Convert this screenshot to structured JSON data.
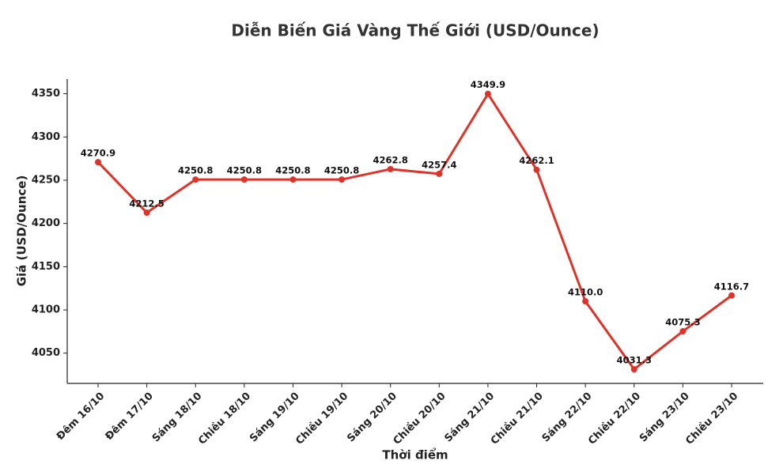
{
  "chart_data": {
    "type": "line",
    "title": "Diễn Biến Giá Vàng Thế Giới (USD/Ounce)",
    "x_label": "Thời điểm",
    "y_label": "Giá (USD/Ounce)",
    "categories": [
      "Đêm 16/10",
      "Đêm 17/10",
      "Sáng 18/10",
      "Chiều 18/10",
      "Sáng 19/10",
      "Chiều 19/10",
      "Sáng 20/10",
      "Chiều 20/10",
      "Sáng 21/10",
      "Chiều 21/10",
      "Sáng 22/10",
      "Chiều 22/10",
      "Sáng 23/10",
      "Chiều 23/10"
    ],
    "values": [
      4270.9,
      4212.5,
      4250.8,
      4250.8,
      4250.8,
      4250.8,
      4262.8,
      4257.4,
      4349.9,
      4262.1,
      4110.0,
      4031.3,
      4075.3,
      4116.7
    ],
    "value_labels": [
      "4270.9",
      "4212.5",
      "4250.8",
      "4250.8",
      "4250.8",
      "4250.8",
      "4262.8",
      "4257.4",
      "4349.9",
      "4262.1",
      "4110.0",
      "4031.3",
      "4075.3",
      "4116.7"
    ],
    "color": "#dd3328",
    "ylim": [
      4015,
      4367
    ],
    "yticks": [
      4050,
      4100,
      4150,
      4200,
      4250,
      4300,
      4350
    ],
    "grid": false
  }
}
